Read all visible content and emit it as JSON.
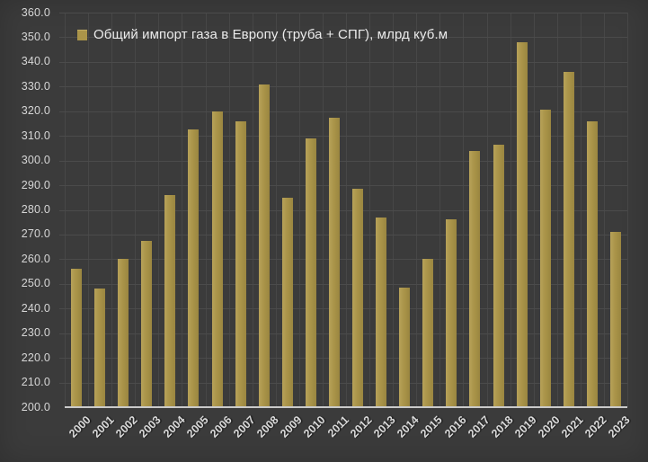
{
  "chart_data": {
    "type": "bar",
    "title": "",
    "legend": "Общий импорт газа в Европу (труба + СПГ), млрд куб.м",
    "legend_position": "top-left",
    "xlabel": "",
    "ylabel": "",
    "categories": [
      "2000",
      "2001",
      "2002",
      "2003",
      "2004",
      "2005",
      "2006",
      "2007",
      "2008",
      "2009",
      "2010",
      "2011",
      "2012",
      "2013",
      "2014",
      "2015",
      "2016",
      "2017",
      "2018",
      "2019",
      "2020",
      "2021",
      "2022",
      "2023"
    ],
    "values": [
      256,
      248,
      260,
      267.5,
      286,
      312.5,
      320,
      316,
      331,
      285,
      309,
      317.5,
      288.5,
      277,
      248.5,
      260,
      276,
      304,
      306.5,
      348,
      320.5,
      336,
      316,
      271
    ],
    "ylim": [
      200,
      360
    ],
    "y_tick_step": 10,
    "y_ticks": [
      "360.0",
      "350.0",
      "340.0",
      "330.0",
      "320.0",
      "310.0",
      "300.0",
      "290.0",
      "280.0",
      "270.0",
      "260.0",
      "250.0",
      "240.0",
      "230.0",
      "220.0",
      "210.0",
      "200.0"
    ],
    "grid": "both",
    "colors": {
      "background": "#3b3b3b",
      "bar": "#aa9449",
      "bar_light": "#b7a259",
      "bar_dark": "#9a8640",
      "gridline": "#4b4b4b",
      "axis_line": "#cacaca",
      "tick_text": "#d9d9d9",
      "legend_text": "#ebebeb"
    }
  }
}
